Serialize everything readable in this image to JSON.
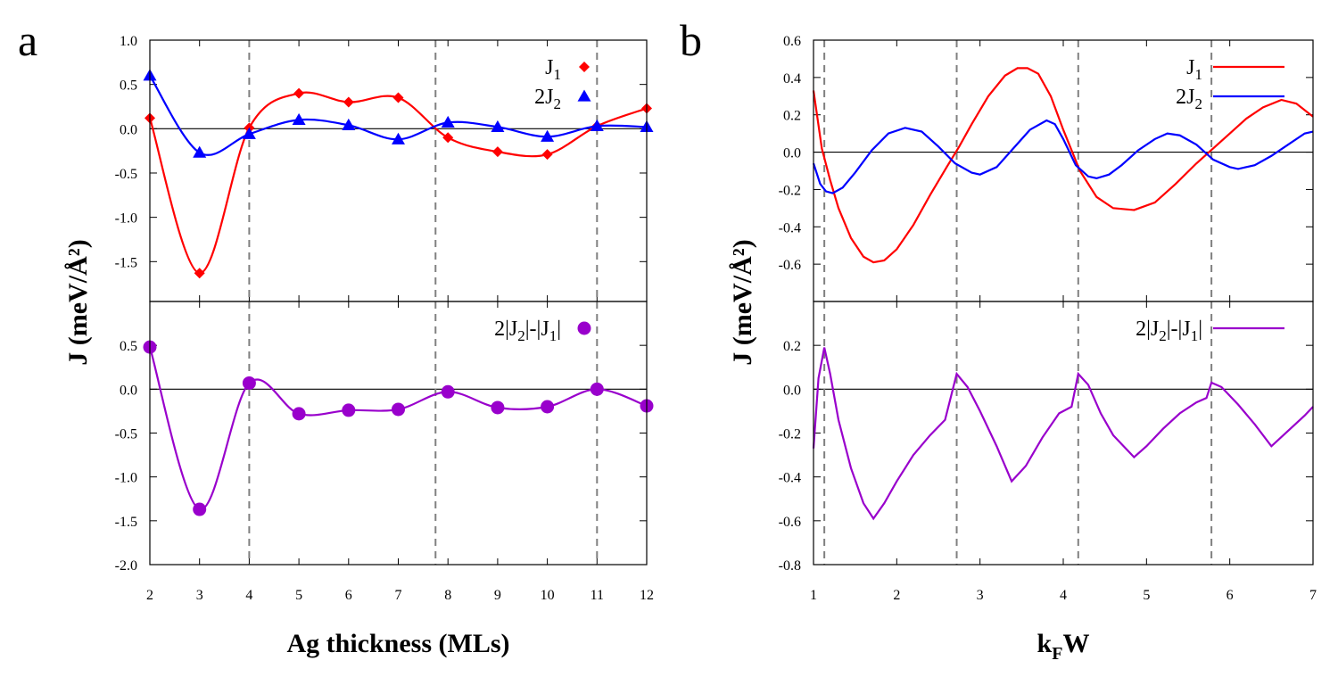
{
  "chart_data": [
    {
      "panel": "a",
      "type": "scatter",
      "xlabel": "Ag thickness (MLs)",
      "ylabel": "J (meV/Å²)",
      "xlim": [
        2,
        12
      ],
      "x_ticks": [
        "2",
        "3",
        "4",
        "5",
        "6",
        "7",
        "8",
        "9",
        "10",
        "11",
        "12"
      ],
      "vlines": [
        4,
        7.75,
        11
      ],
      "subplots": [
        {
          "position": "top",
          "ylim": [
            -1.95,
            1.0
          ],
          "y_ticks": [
            "1.0",
            "0.5",
            "0.0",
            "-0.5",
            "-1.0",
            "-1.5"
          ],
          "y_tick_values": [
            1.0,
            0.5,
            0.0,
            -0.5,
            -1.0,
            -1.5
          ],
          "legend_position": "top-right",
          "series": [
            {
              "name": "J1",
              "label_main": "J",
              "label_sub": "1",
              "color": "#ff0000",
              "marker": "diamond",
              "line": "smooth",
              "x": [
                2,
                3,
                4,
                5,
                6,
                7,
                8,
                9,
                10,
                11,
                12
              ],
              "values": [
                0.12,
                -1.63,
                0.01,
                0.4,
                0.3,
                0.35,
                -0.1,
                -0.26,
                -0.29,
                0.03,
                0.23
              ]
            },
            {
              "name": "2J2",
              "label_main": "2J",
              "label_sub": "2",
              "color": "#0000ff",
              "marker": "triangle",
              "line": "smooth",
              "x": [
                2,
                3,
                4,
                5,
                6,
                7,
                8,
                9,
                10,
                11,
                12
              ],
              "values": [
                0.6,
                -0.27,
                -0.06,
                0.1,
                0.04,
                -0.12,
                0.07,
                0.02,
                -0.09,
                0.03,
                0.02
              ]
            }
          ]
        },
        {
          "position": "bottom",
          "ylim": [
            -2.0,
            1.0
          ],
          "y_ticks": [
            "0.5",
            "0.0",
            "-0.5",
            "-1.0",
            "-1.5",
            "-2.0"
          ],
          "y_tick_values": [
            0.5,
            0.0,
            -0.5,
            -1.0,
            -1.5,
            -2.0
          ],
          "legend_position": "top-right",
          "series": [
            {
              "name": "2|J2|-|J1|",
              "label": "2|J2|-|J1|",
              "color": "#9900cc",
              "marker": "circle",
              "line": "smooth",
              "x": [
                2,
                3,
                4,
                5,
                6,
                7,
                8,
                9,
                10,
                11,
                12
              ],
              "values": [
                0.48,
                -1.37,
                0.07,
                -0.28,
                -0.24,
                -0.23,
                -0.03,
                -0.21,
                -0.2,
                0.0,
                -0.19
              ]
            }
          ]
        }
      ]
    },
    {
      "panel": "b",
      "type": "line",
      "xlabel": "kFW",
      "xlabel_main": "k",
      "xlabel_sub": "F",
      "xlabel_tail": "W",
      "ylabel": "J (meV/Å²)",
      "xlim": [
        1,
        7
      ],
      "x_ticks": [
        "1",
        "2",
        "3",
        "4",
        "5",
        "6",
        "7"
      ],
      "vlines": [
        1.13,
        2.72,
        4.18,
        5.78
      ],
      "subplots": [
        {
          "position": "top",
          "ylim": [
            -0.8,
            0.6
          ],
          "y_ticks": [
            "0.6",
            "0.4",
            "0.2",
            "0.0",
            "-0.2",
            "-0.4",
            "-0.6"
          ],
          "y_tick_values": [
            0.6,
            0.4,
            0.2,
            0.0,
            -0.2,
            -0.4,
            -0.6
          ],
          "legend_position": "top-right",
          "series": [
            {
              "name": "J1",
              "label_main": "J",
              "label_sub": "1",
              "color": "#ff0000",
              "x": [
                1.0,
                1.1,
                1.2,
                1.3,
                1.45,
                1.6,
                1.72,
                1.85,
                2.0,
                2.2,
                2.4,
                2.6,
                2.75,
                2.9,
                3.1,
                3.3,
                3.45,
                3.57,
                3.7,
                3.85,
                4.0,
                4.2,
                4.4,
                4.6,
                4.85,
                5.1,
                5.35,
                5.6,
                5.8,
                6.0,
                6.2,
                6.4,
                6.62,
                6.8,
                7.0
              ],
              "values": [
                0.33,
                0.02,
                -0.15,
                -0.3,
                -0.46,
                -0.56,
                -0.59,
                -0.58,
                -0.52,
                -0.39,
                -0.23,
                -0.08,
                0.03,
                0.15,
                0.3,
                0.41,
                0.45,
                0.45,
                0.42,
                0.3,
                0.12,
                -0.1,
                -0.24,
                -0.3,
                -0.31,
                -0.27,
                -0.17,
                -0.06,
                0.02,
                0.1,
                0.18,
                0.24,
                0.28,
                0.26,
                0.19
              ]
            },
            {
              "name": "2J2",
              "label_main": "2J",
              "label_sub": "2",
              "color": "#0000ff",
              "x": [
                1.0,
                1.08,
                1.15,
                1.23,
                1.35,
                1.5,
                1.7,
                1.9,
                2.1,
                2.3,
                2.5,
                2.7,
                2.9,
                3.0,
                3.2,
                3.4,
                3.6,
                3.8,
                3.9,
                4.0,
                4.15,
                4.3,
                4.4,
                4.55,
                4.7,
                4.9,
                5.1,
                5.25,
                5.4,
                5.6,
                5.8,
                6.0,
                6.1,
                6.3,
                6.5,
                6.7,
                6.9,
                7.0
              ],
              "values": [
                -0.06,
                -0.17,
                -0.21,
                -0.22,
                -0.19,
                -0.11,
                0.01,
                0.1,
                0.13,
                0.11,
                0.03,
                -0.06,
                -0.11,
                -0.12,
                -0.08,
                0.02,
                0.12,
                0.17,
                0.15,
                0.07,
                -0.07,
                -0.13,
                -0.14,
                -0.12,
                -0.07,
                0.01,
                0.07,
                0.1,
                0.09,
                0.04,
                -0.04,
                -0.08,
                -0.09,
                -0.07,
                -0.02,
                0.04,
                0.1,
                0.11
              ]
            }
          ]
        },
        {
          "position": "bottom",
          "ylim": [
            -0.8,
            0.4
          ],
          "y_ticks": [
            "0.2",
            "0.0",
            "-0.2",
            "-0.4",
            "-0.6",
            "-0.8"
          ],
          "y_tick_values": [
            0.2,
            0.0,
            -0.2,
            -0.4,
            -0.6,
            -0.8
          ],
          "legend_position": "top-right",
          "series": [
            {
              "name": "2|J2|-|J1|",
              "label": "2|J2|-|J1|",
              "color": "#9900cc",
              "x": [
                1.0,
                1.06,
                1.13,
                1.2,
                1.3,
                1.45,
                1.6,
                1.72,
                1.85,
                2.0,
                2.2,
                2.4,
                2.58,
                2.72,
                2.85,
                3.0,
                3.2,
                3.38,
                3.55,
                3.75,
                3.95,
                4.1,
                4.18,
                4.3,
                4.45,
                4.6,
                4.85,
                5.0,
                5.2,
                5.4,
                5.6,
                5.72,
                5.78,
                5.9,
                6.1,
                6.3,
                6.5,
                6.7,
                6.9,
                7.0
              ],
              "values": [
                -0.27,
                0.05,
                0.19,
                0.07,
                -0.14,
                -0.36,
                -0.52,
                -0.59,
                -0.52,
                -0.42,
                -0.3,
                -0.21,
                -0.14,
                0.07,
                0.01,
                -0.1,
                -0.26,
                -0.42,
                -0.35,
                -0.22,
                -0.11,
                -0.08,
                0.07,
                0.02,
                -0.11,
                -0.21,
                -0.31,
                -0.26,
                -0.18,
                -0.11,
                -0.06,
                -0.04,
                0.03,
                0.01,
                -0.07,
                -0.16,
                -0.26,
                -0.19,
                -0.12,
                -0.08
              ]
            }
          ]
        }
      ]
    }
  ]
}
